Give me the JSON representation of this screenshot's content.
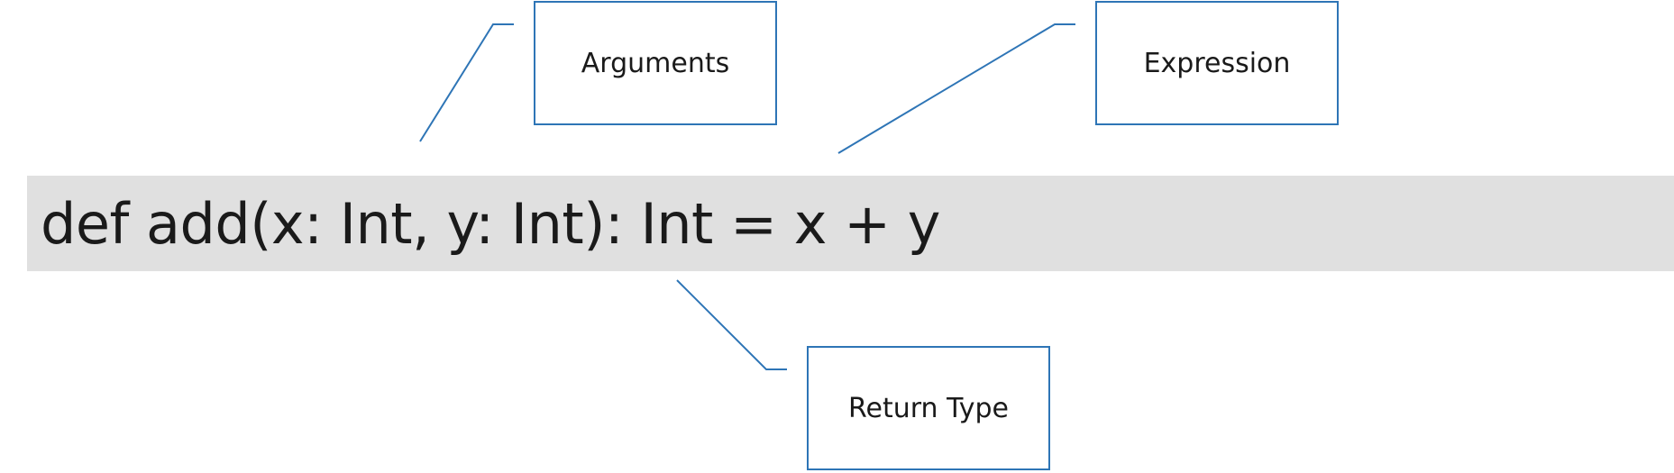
{
  "code": {
    "text": "def add(x: Int, y: Int): Int = x + y"
  },
  "callouts": {
    "arguments": "Arguments",
    "expression": "Expression",
    "return_type": "Return Type"
  },
  "colors": {
    "callout_stroke": "#2e75b6",
    "code_background": "#e0e0e0",
    "text": "#1a1a1a"
  }
}
